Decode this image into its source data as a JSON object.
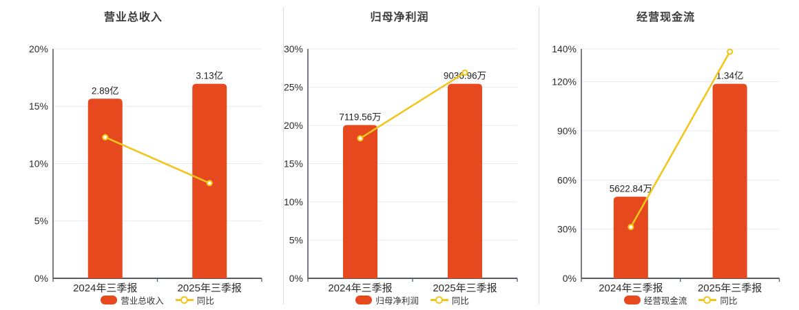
{
  "colors": {
    "bar": "#e5491d",
    "line": "#f2c51d",
    "marker_fill": "#ffffff",
    "grid": "#e4e8f1",
    "axis": "#565b63",
    "tick_text": "#2b2b2b",
    "value_text": "#222222",
    "title_text": "#3c3c3c",
    "legend_text": "#333333",
    "divider": "#dcdcdc",
    "background": "#ffffff"
  },
  "chart_data": [
    {
      "type": "bar+line",
      "title": "营业总收入",
      "categories": [
        "2024年三季报",
        "2025年三季报"
      ],
      "bar_series": {
        "name": "营业总收入",
        "labels": [
          "2.89亿",
          "3.13亿"
        ],
        "values_wan": [
          28900,
          31300
        ]
      },
      "line_series": {
        "name": "同比",
        "values_pct": [
          12.3,
          8.3
        ]
      },
      "y_axis": {
        "min": 0,
        "max": 20,
        "ticks": [
          0,
          5,
          10,
          15,
          20
        ],
        "tick_labels": [
          "0%",
          "5%",
          "10%",
          "15%",
          "20%"
        ]
      },
      "grid": true,
      "legend_position": "bottom"
    },
    {
      "type": "bar+line",
      "title": "归母净利润",
      "categories": [
        "2024年三季报",
        "2025年三季报"
      ],
      "bar_series": {
        "name": "归母净利润",
        "labels": [
          "7119.56万",
          "9036.96万"
        ],
        "values_wan": [
          7119.56,
          9036.96
        ]
      },
      "line_series": {
        "name": "同比",
        "values_pct": [
          18.3,
          26.9
        ]
      },
      "y_axis": {
        "min": 0,
        "max": 30,
        "ticks": [
          0,
          5,
          10,
          15,
          20,
          25,
          30
        ],
        "tick_labels": [
          "0%",
          "5%",
          "10%",
          "15%",
          "20%",
          "25%",
          "30%"
        ]
      },
      "grid": true,
      "legend_position": "bottom"
    },
    {
      "type": "bar+line",
      "title": "经营现金流",
      "categories": [
        "2024年三季报",
        "2025年三季报"
      ],
      "bar_series": {
        "name": "经营现金流",
        "labels": [
          "5622.84万",
          "1.34亿"
        ],
        "values_wan": [
          5622.84,
          13400
        ]
      },
      "line_series": {
        "name": "同比",
        "values_pct": [
          31.3,
          138.3
        ]
      },
      "y_axis": {
        "min": 0,
        "max": 140,
        "ticks": [
          0,
          30,
          60,
          90,
          120,
          140
        ],
        "tick_labels": [
          "0%",
          "30%",
          "60%",
          "90%",
          "120%",
          "140%"
        ]
      },
      "grid": true,
      "legend_position": "bottom"
    }
  ]
}
